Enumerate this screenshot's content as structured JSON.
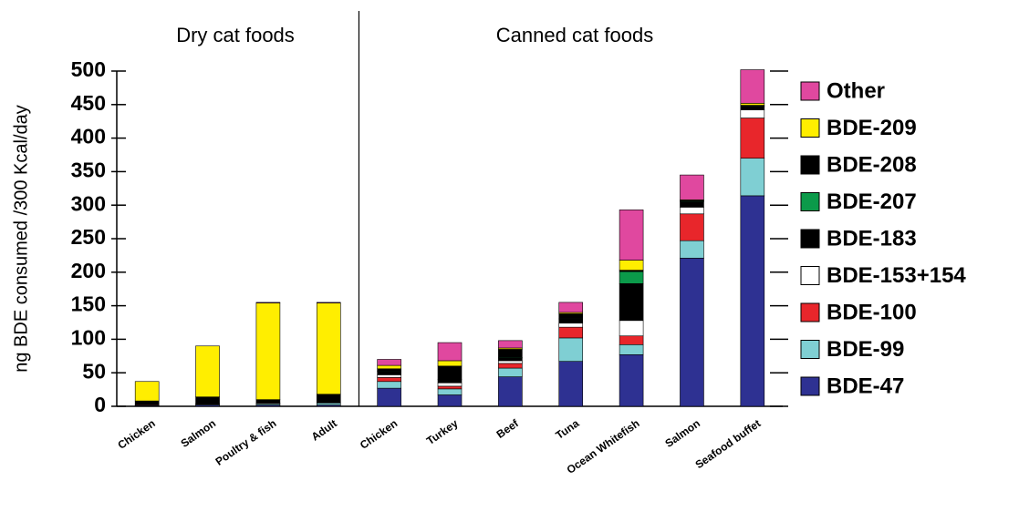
{
  "chart_data": {
    "type": "stacked_bar",
    "y_label": "ng BDE consumed /300 Kcal/day",
    "group_labels": [
      "Dry cat foods",
      "Canned cat foods"
    ],
    "categories": [
      "Chicken",
      "Salmon",
      "Poultry & fish",
      "Adult",
      "Chicken",
      "Turkey",
      "Beef",
      "Tuna",
      "Ocean Whitefish",
      "Salmon",
      "Seafood buffet"
    ],
    "series": [
      {
        "name": "BDE-47",
        "color": "#2e3192",
        "values": [
          1,
          2,
          2,
          2,
          27,
          17,
          44,
          67,
          77,
          221,
          314
        ]
      },
      {
        "name": "BDE-99",
        "color": "#7fcfd3",
        "values": [
          1,
          1,
          2,
          3,
          10,
          9,
          13,
          35,
          15,
          26,
          56
        ]
      },
      {
        "name": "BDE-100",
        "color": "#e8262b",
        "values": [
          1,
          1,
          1,
          1,
          6,
          4,
          7,
          16,
          13,
          40,
          60
        ]
      },
      {
        "name": "BDE-153+154",
        "color": "#ffffff",
        "values": [
          0,
          0,
          0,
          0,
          4,
          5,
          4,
          6,
          23,
          10,
          12
        ]
      },
      {
        "name": "BDE-183",
        "color": "#000000",
        "values": [
          0,
          0,
          0,
          0,
          5,
          5,
          4,
          6,
          55,
          8,
          5
        ]
      },
      {
        "name": "BDE-207",
        "color": "#0b9a4a",
        "values": [
          0,
          0,
          0,
          0,
          1,
          0,
          1,
          1,
          18,
          1,
          1
        ]
      },
      {
        "name": "BDE-208",
        "color": "#000000",
        "values": [
          5,
          10,
          5,
          12,
          3,
          20,
          12,
          7,
          2,
          1,
          1
        ]
      },
      {
        "name": "BDE-209",
        "color": "#ffee00",
        "values": [
          29,
          76,
          144,
          136,
          5,
          8,
          2,
          2,
          15,
          1,
          3
        ]
      },
      {
        "name": "Other",
        "color": "#e0489f",
        "values": [
          0,
          0,
          1,
          1,
          9,
          27,
          11,
          15,
          75,
          37,
          50
        ]
      }
    ],
    "ylim": [
      0,
      500
    ],
    "yticks": [
      0,
      50,
      100,
      150,
      200,
      250,
      300,
      350,
      400,
      450,
      500
    ]
  }
}
